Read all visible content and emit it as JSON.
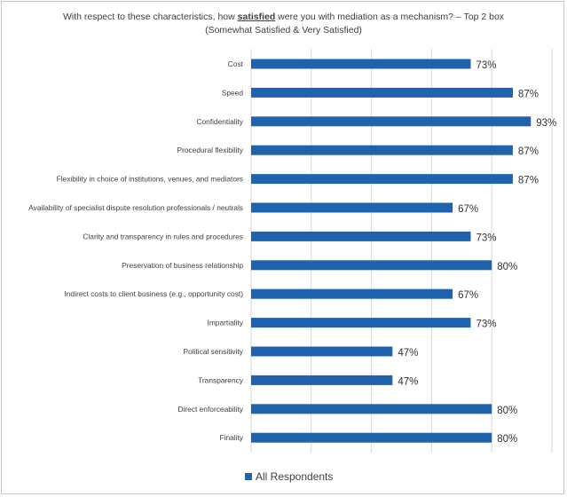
{
  "chart_data": {
    "type": "bar",
    "orientation": "horizontal",
    "title_before": "With respect to these characteristics, how ",
    "title_emphasis": "satisfied",
    "title_after": " were you with mediation as a mechanism? – Top 2 box",
    "subtitle": "(Somewhat Satisfied & Very Satisfied)",
    "categories": [
      "Cost",
      "Speed",
      "Confidentiality",
      "Procedural flexibility",
      "Flexibility in choice of institutions, venues, and mediators",
      "Availability of specialist dispute resolution professionals / neutrals",
      "Clarity and transparency in rules and procedures",
      "Preservation of business relationship",
      "Indirect costs to client business (e.g., opportunity cost)",
      "Impartiality",
      "Political sensitivity",
      "Transparency",
      "Direct enforceability",
      "Finality"
    ],
    "series": [
      {
        "name": "All Respondents",
        "values": [
          73,
          87,
          93,
          87,
          87,
          67,
          73,
          80,
          67,
          73,
          47,
          47,
          80,
          80
        ],
        "labels": [
          "73%",
          "87%",
          "93%",
          "87%",
          "87%",
          "67%",
          "73%",
          "80%",
          "67%",
          "73%",
          "47%",
          "47%",
          "80%",
          "80%"
        ]
      }
    ],
    "xlim": [
      0,
      100
    ],
    "grid": true,
    "legend_position": "bottom",
    "bar_color": "#1f62ad"
  }
}
